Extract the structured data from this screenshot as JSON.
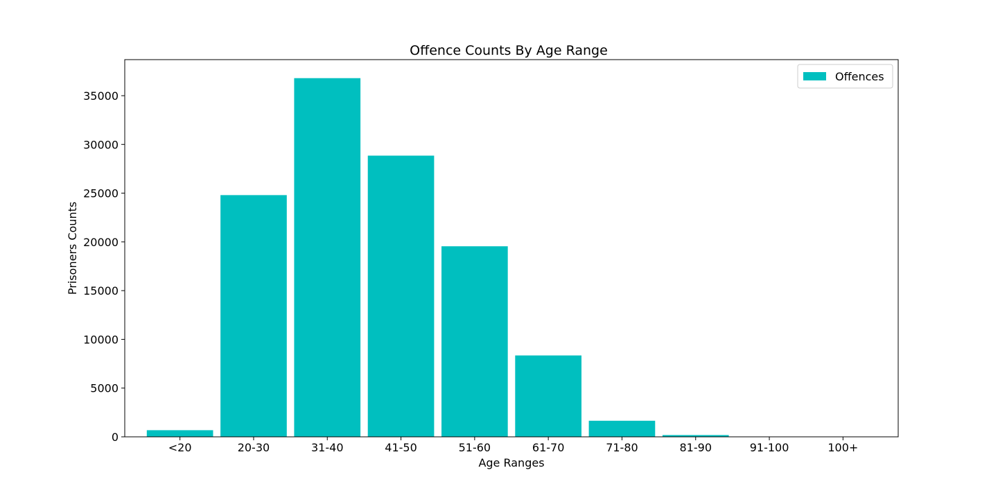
{
  "chart_data": {
    "type": "bar",
    "title": "Offence Counts By Age Range",
    "xlabel": "Age Ranges",
    "ylabel": "Prisoners Counts",
    "categories": [
      "<20",
      "20-30",
      "31-40",
      "41-50",
      "51-60",
      "61-70",
      "71-80",
      "81-90",
      "91-100",
      "100+"
    ],
    "series": [
      {
        "name": "Offences",
        "values": [
          680,
          24800,
          36800,
          28850,
          19550,
          8350,
          1650,
          180,
          15,
          5
        ],
        "color": "#00bfbf"
      }
    ],
    "ylim": [
      0,
      38700
    ],
    "yticks": [
      0,
      5000,
      10000,
      15000,
      20000,
      25000,
      30000,
      35000
    ],
    "grid": false,
    "legend_position": "top-right"
  }
}
